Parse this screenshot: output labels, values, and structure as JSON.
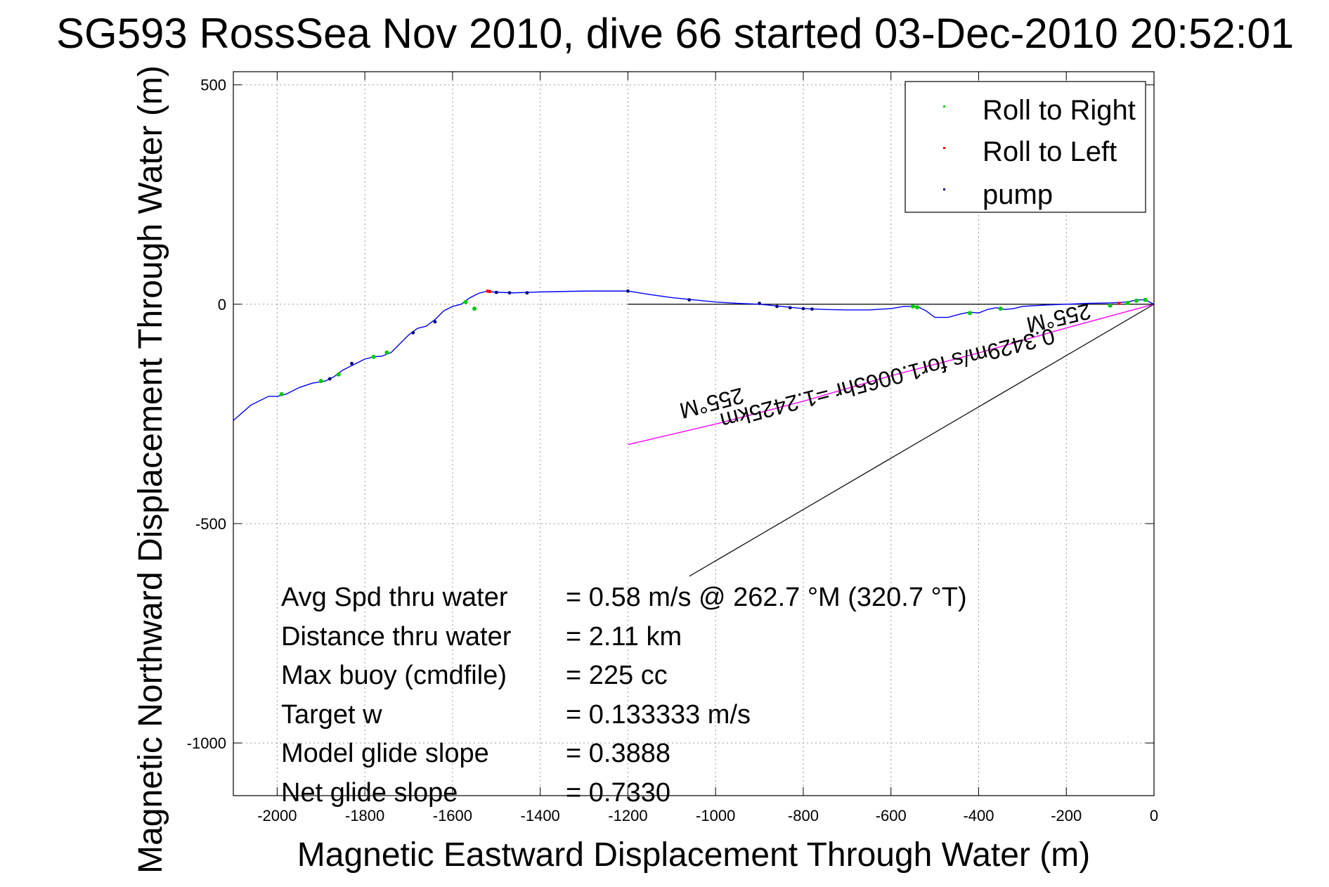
{
  "chart_data": {
    "type": "line",
    "title": "SG593 RossSea Nov 2010, dive 66 started 03-Dec-2010 20:52:01",
    "xlabel": "Magnetic Eastward Displacement Through Water (m)",
    "ylabel": "Magnetic Northward Displacement Through Water (m)",
    "xlim": [
      -2100,
      0
    ],
    "ylim": [
      -1120,
      530
    ],
    "x_ticks": [
      -2000,
      -1800,
      -1600,
      -1400,
      -1200,
      -1000,
      -800,
      -600,
      -400,
      -200,
      0
    ],
    "y_ticks": [
      500,
      0,
      -500,
      -1000
    ],
    "x_tick_labels": [
      "-2000",
      "-1800",
      "-1600",
      "-1400",
      "-1200",
      "-1000",
      "-800",
      "-600",
      "-400",
      "-200",
      "0"
    ],
    "y_tick_labels": [
      "500",
      "0",
      "-500",
      "-1000"
    ],
    "grid": true,
    "legend_position": "top-right",
    "legend": [
      {
        "label": "Roll to Right",
        "color": "#00cc00"
      },
      {
        "label": "Roll to Left",
        "color": "#ff0000"
      },
      {
        "label": "pump",
        "color": "#000080"
      }
    ],
    "series": [
      {
        "name": "track",
        "color": "#0000ff",
        "x": [
          -2100,
          -2060,
          -2020,
          -2000,
          -1980,
          -1950,
          -1920,
          -1890,
          -1870,
          -1850,
          -1820,
          -1800,
          -1780,
          -1760,
          -1740,
          -1720,
          -1700,
          -1680,
          -1660,
          -1640,
          -1620,
          -1600,
          -1580,
          -1560,
          -1540,
          -1520,
          -1510,
          -1490,
          -1460,
          -1400,
          -1300,
          -1200,
          -1150,
          -1100,
          -1050,
          -1000,
          -950,
          -900,
          -850,
          -800,
          -750,
          -700,
          -650,
          -600,
          -570,
          -540,
          -520,
          -500,
          -470,
          -440,
          -420,
          -400,
          -380,
          -360,
          -340,
          -320,
          -300,
          -250,
          -200,
          -150,
          -100,
          -60,
          -40,
          -20,
          -10,
          0
        ],
        "y": [
          -265,
          -230,
          -210,
          -210,
          -205,
          -190,
          -180,
          -175,
          -165,
          -150,
          -135,
          -125,
          -120,
          -118,
          -110,
          -90,
          -70,
          -55,
          -50,
          -35,
          -15,
          -5,
          0,
          15,
          25,
          30,
          28,
          27,
          26,
          28,
          30,
          30,
          22,
          15,
          10,
          5,
          2,
          0,
          -5,
          -10,
          -12,
          -13,
          -13,
          -10,
          -5,
          -5,
          -15,
          -30,
          -30,
          -22,
          -18,
          -20,
          -12,
          -8,
          -12,
          -10,
          -5,
          -2,
          0,
          2,
          3,
          5,
          10,
          10,
          5,
          0
        ]
      },
      {
        "name": "",
        "color": "#ff00ff",
        "x": [
          -1200,
          -1000,
          -800,
          -600,
          -400,
          -200,
          -100,
          0
        ],
        "y": [
          -320,
          -273,
          -221,
          -163,
          -111,
          -54,
          -27,
          0
        ]
      }
    ],
    "reference_lines": [
      {
        "color": "#000000",
        "x": [
          -1200,
          0
        ],
        "y": [
          0,
          0
        ]
      },
      {
        "color": "#000000",
        "x": [
          -1060,
          0
        ],
        "y": [
          -620,
          0
        ]
      }
    ],
    "markers": {
      "roll_right": {
        "color": "#00cc00",
        "x": [
          -1990,
          -1900,
          -1860,
          -1780,
          -1750,
          -1570,
          -1550,
          -550,
          -540,
          -420,
          -350,
          -100,
          -60,
          -40,
          -20
        ],
        "y": [
          -205,
          -175,
          -160,
          -120,
          -110,
          5,
          -10,
          -5,
          -7,
          -20,
          -10,
          -3,
          3,
          8,
          10
        ]
      },
      "roll_left": {
        "color": "#ff0000",
        "x": [
          -1520,
          -1515,
          -80
        ],
        "y": [
          30,
          29,
          2
        ]
      },
      "pump": {
        "color": "#000080",
        "x": [
          -1880,
          -1830,
          -1690,
          -1640,
          -1500,
          -1470,
          -1430,
          -1200,
          -1060,
          -900,
          -860,
          -830,
          -800,
          -780
        ],
        "y": [
          -170,
          -135,
          -65,
          -40,
          27,
          26,
          26,
          30,
          10,
          2,
          -5,
          -8,
          -10,
          -11
        ]
      }
    },
    "annotations": [
      {
        "text": "0.3429m/s for1.0065hr =1.2425km",
        "angle": 180
      },
      {
        "text": "255°M",
        "angle": 180
      },
      {
        "text": "255°M",
        "angle": 180
      }
    ],
    "stats": [
      {
        "label": "Avg Spd thru water",
        "value": "=  0.58 m/s @ 262.7 °M (320.7 °T)"
      },
      {
        "label": "Distance thru water",
        "value": "=  2.11 km"
      },
      {
        "label": "Max buoy (cmdfile)",
        "value": "= 225 cc"
      },
      {
        "label": "Target w",
        "value": "= 0.133333 m/s"
      },
      {
        "label": "Model glide slope",
        "value": "= 0.3888"
      },
      {
        "label": "Net glide slope",
        "value": "= 0.7330"
      }
    ]
  }
}
